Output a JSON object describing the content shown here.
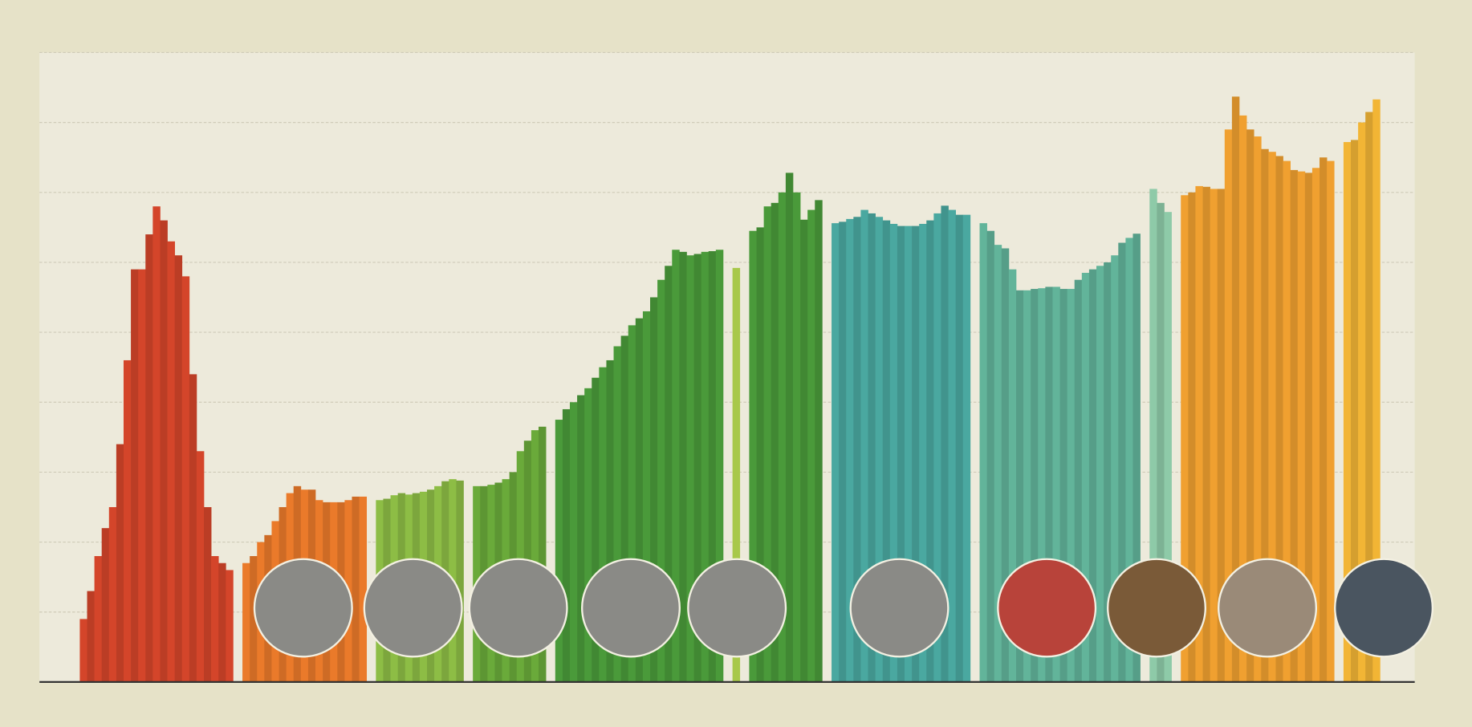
{
  "chart_data": {
    "type": "bar",
    "ylim": [
      0,
      9
    ],
    "grid_lines": [
      1,
      2,
      3,
      4,
      5,
      6,
      7,
      8,
      9
    ],
    "grid": true,
    "series": [
      {
        "color": "#d4452a",
        "values": [
          0.9,
          1.3,
          1.8,
          2.2,
          2.5,
          3.4,
          4.6,
          5.9,
          5.9,
          6.4,
          6.8,
          6.6,
          6.3,
          6.1,
          5.8,
          4.4,
          3.3,
          2.5,
          1.8,
          1.7,
          1.6
        ]
      },
      {
        "color": "#ea7a2a",
        "values": [
          1.7,
          1.8,
          2.0,
          2.1,
          2.3,
          2.5,
          2.7,
          2.8,
          2.75,
          2.75,
          2.6,
          2.57,
          2.57,
          2.57,
          2.6,
          2.65,
          2.65
        ]
      },
      {
        "color": "#8dbd45",
        "values": [
          2.6,
          2.62,
          2.67,
          2.7,
          2.68,
          2.7,
          2.72,
          2.75,
          2.8,
          2.87,
          2.9,
          2.88
        ]
      },
      {
        "color": "#6aaa3a",
        "values": [
          2.8,
          2.8,
          2.82,
          2.85,
          2.9,
          3.0,
          3.3,
          3.45,
          3.6,
          3.65
        ]
      },
      {
        "color": "#4a9a3a",
        "values": [
          3.75,
          3.9,
          4.0,
          4.1,
          4.2,
          4.35,
          4.5,
          4.6,
          4.8,
          4.95,
          5.1,
          5.2,
          5.3,
          5.5,
          5.75,
          5.95,
          6.18,
          6.15,
          6.1,
          6.12,
          6.15,
          6.16,
          6.18
        ]
      },
      {
        "color": "#a8c84a",
        "values": [
          5.92
        ]
      },
      {
        "color": "#4a9a3a",
        "values": [
          6.45,
          6.5,
          6.8,
          6.85,
          7.0,
          7.28,
          7.0,
          6.61,
          6.75,
          6.89
        ]
      },
      {
        "color": "#4aa8a0",
        "values": [
          6.56,
          6.58,
          6.62,
          6.65,
          6.75,
          6.7,
          6.65,
          6.6,
          6.55,
          6.52,
          6.52,
          6.52,
          6.55,
          6.6,
          6.7,
          6.81,
          6.75,
          6.68,
          6.68
        ]
      },
      {
        "color": "#62b49a",
        "values": [
          6.56,
          6.45,
          6.25,
          6.2,
          5.9,
          5.6,
          5.6,
          5.62,
          5.63,
          5.65,
          5.65,
          5.62,
          5.62,
          5.75,
          5.85,
          5.9,
          5.95,
          6.0,
          6.1,
          6.28,
          6.35,
          6.41
        ]
      },
      {
        "color": "#8ecaa8",
        "values": [
          7.05,
          6.85,
          6.72
        ]
      },
      {
        "color": "#f0a030",
        "values": [
          6.96,
          7.0,
          7.09,
          7.08,
          7.05,
          7.05,
          7.9,
          8.37,
          8.1,
          7.9,
          7.8,
          7.62,
          7.58,
          7.52,
          7.45,
          7.32,
          7.3,
          7.28,
          7.35,
          7.5,
          7.45
        ]
      },
      {
        "color": "#f2b535",
        "values": [
          7.72,
          7.75,
          8.0,
          8.15,
          8.33
        ]
      }
    ]
  }
}
